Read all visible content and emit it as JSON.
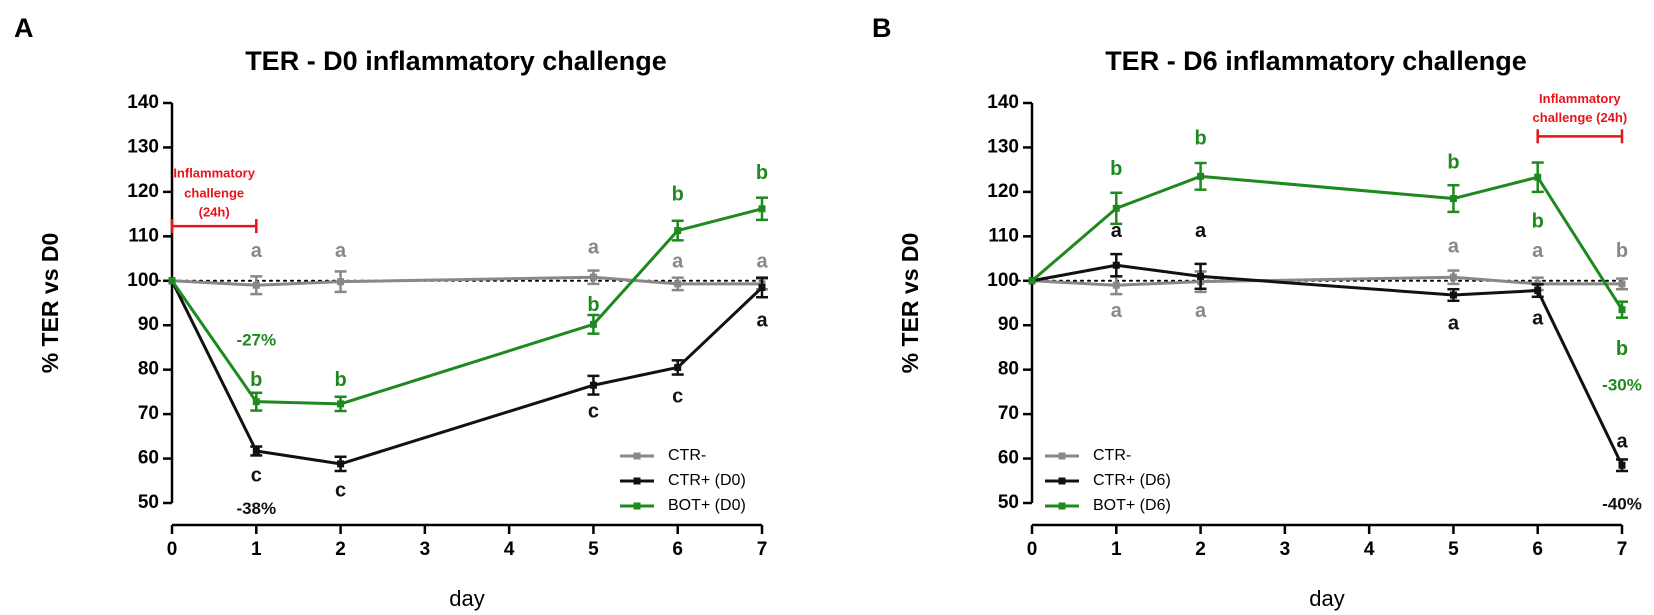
{
  "colors": {
    "ctr_minus": "#888888",
    "ctr_plus": "#111111",
    "bot_plus": "#1e8a1e",
    "challenge": "#e8141c"
  },
  "chart_data": [
    {
      "type": "line",
      "panel_label": "A",
      "title": "TER - D0 inflammatory challenge",
      "xlabel": "day",
      "ylabel": "% TER vs D0",
      "x_ticks": [
        "0",
        "1",
        "2",
        "3",
        "4",
        "5",
        "6",
        "7"
      ],
      "y_ticks": [
        "50",
        "60",
        "70",
        "80",
        "90",
        "100",
        "110",
        "120",
        "130",
        "140"
      ],
      "xlim": [
        0,
        7
      ],
      "ylim": [
        50,
        140
      ],
      "reference_line": 100,
      "series": [
        {
          "name": "CTR-",
          "legend": "CTR-",
          "color": "#888888",
          "x": [
            0,
            1,
            2,
            5,
            6,
            7
          ],
          "y": [
            100,
            99,
            99.8,
            100.8,
            99.3,
            99.3
          ],
          "err": [
            0,
            2,
            2.3,
            1.5,
            1.4,
            1.2
          ]
        },
        {
          "name": "CTR+",
          "legend": "CTR+ (D0)",
          "color": "#111111",
          "x": [
            0,
            1,
            2,
            5,
            6,
            7
          ],
          "y": [
            100,
            61.7,
            58.8,
            76.5,
            80.5,
            98.5
          ],
          "err": [
            0,
            1,
            1.6,
            2.1,
            1.6,
            2.2
          ]
        },
        {
          "name": "BOT+",
          "legend": "BOT+ (D0)",
          "color": "#1e8a1e",
          "x": [
            0,
            1,
            2,
            5,
            6,
            7
          ],
          "y": [
            100,
            72.8,
            72.3,
            90.2,
            111.3,
            116.2
          ],
          "err": [
            0,
            2,
            1.6,
            2.1,
            2.2,
            2.5
          ]
        }
      ],
      "letters": [
        {
          "text": "a",
          "series": "CTR-",
          "day": 1,
          "y": 106.5
        },
        {
          "text": "a",
          "series": "CTR-",
          "day": 2,
          "y": 106.5
        },
        {
          "text": "a",
          "series": "CTR-",
          "day": 5,
          "y": 107.3
        },
        {
          "text": "a",
          "series": "CTR-",
          "day": 6,
          "y": 104.2
        },
        {
          "text": "a",
          "series": "CTR-",
          "day": 7,
          "y": 104.2
        },
        {
          "text": "b",
          "series": "BOT+",
          "day": 1,
          "y": 77.5
        },
        {
          "text": "b",
          "series": "BOT+",
          "day": 2,
          "y": 77.5
        },
        {
          "text": "b",
          "series": "BOT+",
          "day": 5,
          "y": 94.4
        },
        {
          "text": "b",
          "series": "BOT+",
          "day": 6,
          "y": 119.3
        },
        {
          "text": "b",
          "series": "BOT+",
          "day": 7,
          "y": 124.1
        },
        {
          "text": "c",
          "series": "CTR+",
          "day": 1,
          "y": 56
        },
        {
          "text": "c",
          "series": "CTR+",
          "day": 2,
          "y": 52.6
        },
        {
          "text": "c",
          "series": "CTR+",
          "day": 5,
          "y": 70.4
        },
        {
          "text": "c",
          "series": "CTR+",
          "day": 6,
          "y": 73.8
        },
        {
          "text": "a",
          "series": "CTR+",
          "day": 7,
          "y": 90.9
        }
      ],
      "percent_labels": [
        {
          "text": "-27%",
          "series": "BOT+",
          "day": 1,
          "y": 86.5
        },
        {
          "text": "-38%",
          "series": "CTR+",
          "day": 1,
          "y": 48.5
        }
      ],
      "challenge": {
        "label_lines": [
          "Inflammatory",
          "challenge",
          "(24h)"
        ],
        "x_start": 0,
        "x_end": 1,
        "y": 112.3,
        "label_y": [
          124,
          119.5,
          115.2
        ]
      },
      "legend_position": "bottom-right"
    },
    {
      "type": "line",
      "panel_label": "B",
      "title": "TER - D6 inflammatory challenge",
      "xlabel": "day",
      "ylabel": "% TER vs D0",
      "x_ticks": [
        "0",
        "1",
        "2",
        "3",
        "4",
        "5",
        "6",
        "7"
      ],
      "y_ticks": [
        "50",
        "60",
        "70",
        "80",
        "90",
        "100",
        "110",
        "120",
        "130",
        "140"
      ],
      "xlim": [
        0,
        7
      ],
      "ylim": [
        50,
        140
      ],
      "reference_line": 100,
      "series": [
        {
          "name": "CTR-",
          "legend": "CTR-",
          "color": "#888888",
          "x": [
            0,
            1,
            2,
            5,
            6,
            7
          ],
          "y": [
            100,
            99,
            99.8,
            100.8,
            99.3,
            99.3
          ],
          "err": [
            0,
            2,
            2.3,
            1.5,
            1.4,
            1.2
          ]
        },
        {
          "name": "CTR+",
          "legend": "CTR+ (D6)",
          "color": "#111111",
          "x": [
            0,
            1,
            2,
            5,
            6,
            7
          ],
          "y": [
            100,
            103.5,
            101,
            96.8,
            97.8,
            58.5
          ],
          "err": [
            0,
            2.5,
            2.8,
            1.3,
            1.4,
            1.3
          ]
        },
        {
          "name": "BOT+",
          "legend": "BOT+ (D6)",
          "color": "#1e8a1e",
          "x": [
            0,
            1,
            2,
            5,
            6,
            7
          ],
          "y": [
            100,
            116.3,
            123.5,
            118.5,
            123.3,
            93.5
          ],
          "err": [
            0,
            3.5,
            3,
            3,
            3.3,
            1.8
          ]
        }
      ],
      "letters": [
        {
          "text": "b",
          "series": "BOT+",
          "day": 1,
          "y": 125
        },
        {
          "text": "b",
          "series": "BOT+",
          "day": 2,
          "y": 131.8
        },
        {
          "text": "b",
          "series": "BOT+",
          "day": 5,
          "y": 126.4
        },
        {
          "text": "b",
          "series": "BOT+",
          "day": 6,
          "y": 113.2
        },
        {
          "text": "b",
          "series": "BOT+",
          "day": 7,
          "y": 84.5
        },
        {
          "text": "a",
          "series": "CTR+",
          "day": 1,
          "y": 111
        },
        {
          "text": "a",
          "series": "CTR+",
          "day": 2,
          "y": 111
        },
        {
          "text": "a",
          "series": "CTR+",
          "day": 5,
          "y": 90.2
        },
        {
          "text": "a",
          "series": "CTR+",
          "day": 6,
          "y": 91.4
        },
        {
          "text": "a",
          "series": "CTR+",
          "day": 7,
          "y": 63.7
        },
        {
          "text": "a",
          "series": "CTR-",
          "day": 1,
          "y": 93
        },
        {
          "text": "a",
          "series": "CTR-",
          "day": 2,
          "y": 93
        },
        {
          "text": "a",
          "series": "CTR-",
          "day": 5,
          "y": 107.5
        },
        {
          "text": "a",
          "series": "CTR-",
          "day": 6,
          "y": 106.5
        },
        {
          "text": "b",
          "series": "CTR-",
          "day": 7,
          "y": 106.5
        }
      ],
      "percent_labels": [
        {
          "text": "-30%",
          "series": "BOT+",
          "day": 7,
          "y": 76.3
        },
        {
          "text": "-40%",
          "series": "CTR+",
          "day": 7,
          "y": 49.5
        }
      ],
      "challenge": {
        "label_lines": [
          "Inflammatory",
          "challenge (24h)"
        ],
        "x_start": 6,
        "x_end": 7,
        "y": 132.5,
        "label_y": [
          140.8,
          136.5
        ]
      },
      "legend_position": "bottom-left"
    }
  ]
}
